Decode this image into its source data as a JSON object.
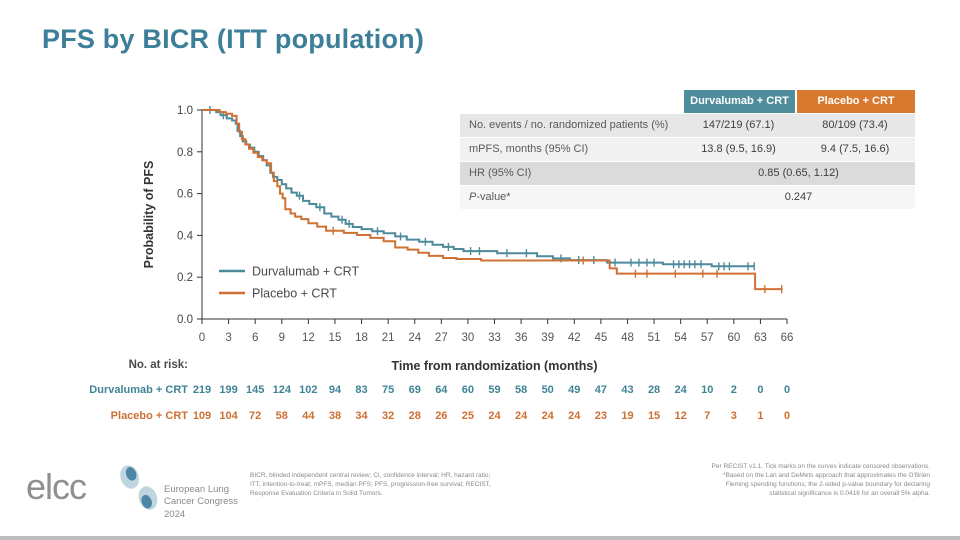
{
  "slide": {
    "title": "PFS by BICR (ITT population)"
  },
  "summary_table": {
    "columns": [
      "Durvalumab + CRT",
      "Placebo + CRT"
    ],
    "rows": [
      {
        "label": "No. events / no. randomized patients (%)",
        "durvalumab": "147/219 (67.1)",
        "placebo": "80/109 (73.4)"
      },
      {
        "label": "mPFS, months (95% CI)",
        "durvalumab": "13.8 (9.5, 16.9)",
        "placebo": "9.4 (7.5, 16.6)"
      },
      {
        "label": "HR (95% CI)",
        "value": "0.85 (0.65, 1.12)"
      },
      {
        "label_italic": "P",
        "label_rest": "-value*",
        "value": "0.247"
      }
    ]
  },
  "chart_data": {
    "type": "line",
    "subtype": "kaplan-meier-step",
    "title": "",
    "xlabel": "Time from randomization (months)",
    "ylabel": "Probability of PFS",
    "xlim": [
      0,
      66
    ],
    "ylim": [
      0.0,
      1.0
    ],
    "x_ticks": [
      0,
      3,
      6,
      9,
      12,
      15,
      18,
      21,
      24,
      27,
      30,
      33,
      36,
      39,
      42,
      45,
      48,
      51,
      54,
      57,
      60,
      63,
      66
    ],
    "y_ticks": [
      "0.0",
      "0.2",
      "0.4",
      "0.6",
      "0.8",
      "1.0"
    ],
    "grid": "off",
    "legend_position": "inside-lower-left",
    "series": [
      {
        "name": "Durvalumab + CRT",
        "color": "#4d8a9b",
        "steps": [
          [
            0,
            1
          ],
          [
            1.6,
            1
          ],
          [
            1.6,
            0.99
          ],
          [
            2.1,
            0.99
          ],
          [
            2.1,
            0.975
          ],
          [
            2.8,
            0.975
          ],
          [
            2.8,
            0.96
          ],
          [
            3.4,
            0.96
          ],
          [
            3.4,
            0.95
          ],
          [
            3.8,
            0.95
          ],
          [
            3.8,
            0.935
          ],
          [
            4.0,
            0.935
          ],
          [
            4.0,
            0.9
          ],
          [
            4.3,
            0.9
          ],
          [
            4.3,
            0.875
          ],
          [
            4.6,
            0.875
          ],
          [
            4.6,
            0.85
          ],
          [
            5.0,
            0.85
          ],
          [
            5.0,
            0.835
          ],
          [
            5.4,
            0.835
          ],
          [
            5.4,
            0.82
          ],
          [
            5.9,
            0.82
          ],
          [
            5.9,
            0.8
          ],
          [
            6.4,
            0.8
          ],
          [
            6.4,
            0.78
          ],
          [
            6.9,
            0.78
          ],
          [
            6.9,
            0.76
          ],
          [
            7.3,
            0.76
          ],
          [
            7.3,
            0.735
          ],
          [
            7.7,
            0.735
          ],
          [
            7.7,
            0.7
          ],
          [
            8.0,
            0.7
          ],
          [
            8.0,
            0.68
          ],
          [
            8.5,
            0.68
          ],
          [
            8.5,
            0.665
          ],
          [
            9.0,
            0.665
          ],
          [
            9.0,
            0.645
          ],
          [
            9.5,
            0.645
          ],
          [
            9.5,
            0.625
          ],
          [
            10.1,
            0.625
          ],
          [
            10.1,
            0.605
          ],
          [
            10.7,
            0.605
          ],
          [
            10.7,
            0.59
          ],
          [
            11.4,
            0.59
          ],
          [
            11.4,
            0.565
          ],
          [
            12.1,
            0.565
          ],
          [
            12.1,
            0.55
          ],
          [
            12.9,
            0.55
          ],
          [
            12.9,
            0.535
          ],
          [
            13.8,
            0.535
          ],
          [
            13.8,
            0.505
          ],
          [
            14.6,
            0.505
          ],
          [
            14.6,
            0.49
          ],
          [
            15.4,
            0.49
          ],
          [
            15.4,
            0.475
          ],
          [
            16.2,
            0.475
          ],
          [
            16.2,
            0.455
          ],
          [
            17.0,
            0.455
          ],
          [
            17.0,
            0.44
          ],
          [
            18.0,
            0.44
          ],
          [
            18.0,
            0.43
          ],
          [
            19.2,
            0.43
          ],
          [
            19.2,
            0.42
          ],
          [
            20.5,
            0.42
          ],
          [
            20.5,
            0.41
          ],
          [
            21.8,
            0.41
          ],
          [
            21.8,
            0.395
          ],
          [
            23.1,
            0.395
          ],
          [
            23.1,
            0.38
          ],
          [
            24.5,
            0.38
          ],
          [
            24.5,
            0.37
          ],
          [
            26.0,
            0.37
          ],
          [
            26.0,
            0.355
          ],
          [
            27.2,
            0.355
          ],
          [
            27.2,
            0.345
          ],
          [
            28.4,
            0.345
          ],
          [
            28.4,
            0.335
          ],
          [
            29.5,
            0.335
          ],
          [
            29.5,
            0.325
          ],
          [
            33.3,
            0.325
          ],
          [
            33.3,
            0.315
          ],
          [
            37.8,
            0.315
          ],
          [
            37.8,
            0.3
          ],
          [
            39.6,
            0.3
          ],
          [
            39.6,
            0.29
          ],
          [
            41.5,
            0.29
          ],
          [
            41.5,
            0.282
          ],
          [
            45.7,
            0.282
          ],
          [
            45.7,
            0.27
          ],
          [
            52.0,
            0.27
          ],
          [
            52.0,
            0.262
          ],
          [
            57.5,
            0.262
          ],
          [
            57.5,
            0.252
          ],
          [
            62.3,
            0.252
          ]
        ],
        "censor_marks": [
          [
            0.9,
            1
          ],
          [
            2.4,
            0.975
          ],
          [
            11.0,
            0.59
          ],
          [
            13.3,
            0.535
          ],
          [
            15.8,
            0.475
          ],
          [
            16.6,
            0.455
          ],
          [
            19.8,
            0.42
          ],
          [
            22.4,
            0.395
          ],
          [
            25.2,
            0.37
          ],
          [
            27.8,
            0.345
          ],
          [
            30.3,
            0.325
          ],
          [
            31.3,
            0.325
          ],
          [
            34.4,
            0.315
          ],
          [
            36.6,
            0.315
          ],
          [
            40.5,
            0.29
          ],
          [
            42.5,
            0.282
          ],
          [
            44.2,
            0.282
          ],
          [
            46.6,
            0.27
          ],
          [
            48.4,
            0.27
          ],
          [
            49.3,
            0.27
          ],
          [
            50.2,
            0.27
          ],
          [
            51.0,
            0.27
          ],
          [
            53.2,
            0.262
          ],
          [
            53.8,
            0.262
          ],
          [
            54.4,
            0.262
          ],
          [
            55.0,
            0.262
          ],
          [
            55.6,
            0.262
          ],
          [
            56.3,
            0.262
          ],
          [
            58.3,
            0.252
          ],
          [
            58.9,
            0.252
          ],
          [
            59.5,
            0.252
          ],
          [
            61.6,
            0.252
          ],
          [
            62.3,
            0.252
          ]
        ]
      },
      {
        "name": "Placebo + CRT",
        "color": "#cf7034",
        "steps": [
          [
            0,
            1
          ],
          [
            2.0,
            1
          ],
          [
            2.0,
            0.99
          ],
          [
            2.7,
            0.99
          ],
          [
            2.7,
            0.982
          ],
          [
            3.4,
            0.982
          ],
          [
            3.4,
            0.972
          ],
          [
            3.9,
            0.972
          ],
          [
            3.9,
            0.935
          ],
          [
            4.2,
            0.935
          ],
          [
            4.2,
            0.895
          ],
          [
            4.5,
            0.895
          ],
          [
            4.5,
            0.86
          ],
          [
            4.9,
            0.86
          ],
          [
            4.9,
            0.835
          ],
          [
            5.3,
            0.835
          ],
          [
            5.3,
            0.815
          ],
          [
            5.8,
            0.815
          ],
          [
            5.8,
            0.795
          ],
          [
            6.3,
            0.795
          ],
          [
            6.3,
            0.775
          ],
          [
            6.8,
            0.775
          ],
          [
            6.8,
            0.76
          ],
          [
            7.3,
            0.76
          ],
          [
            7.3,
            0.745
          ],
          [
            7.8,
            0.745
          ],
          [
            7.8,
            0.7
          ],
          [
            8.1,
            0.7
          ],
          [
            8.1,
            0.66
          ],
          [
            8.5,
            0.66
          ],
          [
            8.5,
            0.635
          ],
          [
            8.8,
            0.635
          ],
          [
            8.8,
            0.6
          ],
          [
            9.1,
            0.6
          ],
          [
            9.1,
            0.578
          ],
          [
            9.4,
            0.578
          ],
          [
            9.4,
            0.525
          ],
          [
            10.0,
            0.525
          ],
          [
            10.0,
            0.505
          ],
          [
            10.5,
            0.505
          ],
          [
            10.5,
            0.49
          ],
          [
            11.2,
            0.49
          ],
          [
            11.2,
            0.478
          ],
          [
            12.0,
            0.478
          ],
          [
            12.0,
            0.458
          ],
          [
            13.0,
            0.458
          ],
          [
            13.0,
            0.442
          ],
          [
            14.0,
            0.442
          ],
          [
            14.0,
            0.422
          ],
          [
            16.0,
            0.422
          ],
          [
            16.0,
            0.412
          ],
          [
            17.5,
            0.412
          ],
          [
            17.5,
            0.402
          ],
          [
            19.0,
            0.402
          ],
          [
            19.0,
            0.388
          ],
          [
            20.5,
            0.388
          ],
          [
            20.5,
            0.372
          ],
          [
            21.8,
            0.372
          ],
          [
            21.8,
            0.342
          ],
          [
            23.2,
            0.342
          ],
          [
            23.2,
            0.332
          ],
          [
            24.4,
            0.332
          ],
          [
            24.4,
            0.317
          ],
          [
            25.6,
            0.317
          ],
          [
            25.6,
            0.302
          ],
          [
            27.2,
            0.302
          ],
          [
            27.2,
            0.292
          ],
          [
            28.7,
            0.292
          ],
          [
            28.7,
            0.287
          ],
          [
            31.5,
            0.287
          ],
          [
            31.5,
            0.28
          ],
          [
            46.0,
            0.28
          ],
          [
            46.0,
            0.242
          ],
          [
            46.8,
            0.242
          ],
          [
            46.8,
            0.217
          ],
          [
            62.4,
            0.217
          ],
          [
            62.4,
            0.143
          ],
          [
            65.5,
            0.143
          ]
        ],
        "censor_marks": [
          [
            14.8,
            0.422
          ],
          [
            43.0,
            0.28
          ],
          [
            48.9,
            0.217
          ],
          [
            50.2,
            0.217
          ],
          [
            53.4,
            0.217
          ],
          [
            56.5,
            0.217
          ],
          [
            58.1,
            0.217
          ],
          [
            63.5,
            0.143
          ],
          [
            65.4,
            0.143
          ]
        ]
      }
    ]
  },
  "risk_table": {
    "header": "No. at risk:",
    "time_points": [
      0,
      3,
      6,
      9,
      12,
      15,
      18,
      21,
      24,
      27,
      30,
      33,
      36,
      39,
      42,
      45,
      48,
      51,
      54,
      57,
      60,
      63,
      66
    ],
    "rows": [
      {
        "label": "Durvalumab + CRT",
        "color": "#3f8496",
        "values": [
          219,
          199,
          145,
          124,
          102,
          94,
          83,
          75,
          69,
          64,
          60,
          59,
          58,
          50,
          49,
          47,
          43,
          28,
          24,
          10,
          2,
          0,
          0
        ]
      },
      {
        "label": "Placebo + CRT",
        "color": "#cc7033",
        "values": [
          109,
          104,
          72,
          58,
          44,
          38,
          34,
          32,
          28,
          26,
          25,
          24,
          24,
          24,
          24,
          23,
          19,
          15,
          12,
          7,
          3,
          1,
          0
        ]
      }
    ]
  },
  "footnotes": {
    "left_lines": [
      "BICR, blinded independent central review; CI, confidence interval; HR, hazard ratio;",
      "ITT, intention-to-treat; mPFS, median PFS; PFS, progression-free survival; RECIST,",
      "Response Evaluation Criteria in Solid Tumors."
    ],
    "right_lines": [
      "Per RECIST v1.1. Tick marks on the curves indicate censored observations.",
      "*Based on the Lan and DeMets approach that approximates the O'Brien",
      "Fleming spending functions; the 2-sided p-value boundary for declaring",
      "statistical significance is 0.0416 for an overall 5% alpha."
    ]
  },
  "footer": {
    "logo_text": "elcc",
    "congress_line1": "European Lung",
    "congress_line2": "Cancer Congress 2024"
  },
  "colors": {
    "title_teal": "#3d7f98",
    "durvalumab_teal": "#4d8a9b",
    "placebo_orange": "#cf7034",
    "header_teal_bg": "#4f8d9d",
    "header_orange_bg": "#d9782f"
  }
}
